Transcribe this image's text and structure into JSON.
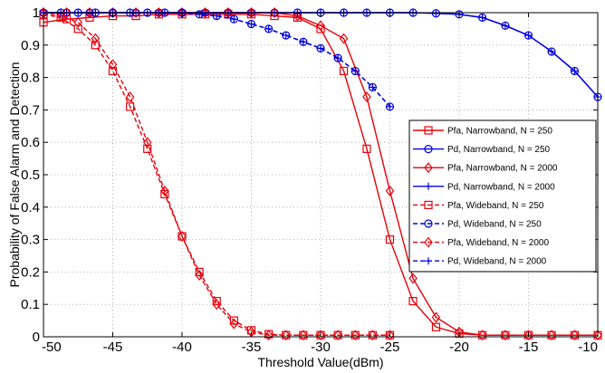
{
  "chart_data": {
    "type": "line",
    "title": "",
    "xlabel": "Threshold Value(dBm)",
    "ylabel": "Probability of False Alarm and Detection",
    "xlim": [
      -50,
      -10
    ],
    "ylim": [
      0,
      1
    ],
    "xticks": [
      -50,
      -45,
      -40,
      -35,
      -30,
      -25,
      -20,
      -15,
      -10
    ],
    "yticks": [
      0,
      0.1,
      0.2,
      0.3,
      0.4,
      0.5,
      0.6,
      0.7,
      0.8,
      0.9,
      1
    ],
    "xtick_labels": [
      "-50",
      "-45",
      "-40",
      "-35",
      "-30",
      "-25",
      "-20",
      "-15",
      "-10"
    ],
    "ytick_labels": [
      "0",
      "0.1",
      "0.2",
      "0.3",
      "0.4",
      "0.5",
      "0.6",
      "0.7",
      "0.8",
      "0.9",
      "1"
    ],
    "grid": true,
    "legend_position": "right",
    "series": [
      {
        "name": "Pfa, Narrowband, N = 250",
        "color": "#e8000b",
        "dash": "solid",
        "marker": "square",
        "x": [
          -50,
          -48.33,
          -46.67,
          -45,
          -43.33,
          -41.67,
          -40,
          -38.33,
          -36.67,
          -35,
          -33.33,
          -31.67,
          -30,
          -28.33,
          -26.67,
          -25,
          -23.33,
          -21.67,
          -20,
          -18.33,
          -16.67,
          -15,
          -13.33,
          -11.67,
          -10
        ],
        "y": [
          0.97,
          0.98,
          0.985,
          0.99,
          0.99,
          0.995,
          0.995,
          0.995,
          0.995,
          0.995,
          0.99,
          0.985,
          0.95,
          0.82,
          0.58,
          0.3,
          0.11,
          0.03,
          0.01,
          0.005,
          0.005,
          0.005,
          0.005,
          0.005,
          0.005
        ]
      },
      {
        "name": "Pd, Narrowband, N = 250",
        "color": "#0000e0",
        "dash": "solid",
        "marker": "circle",
        "x": [
          -50,
          -48.33,
          -46.67,
          -45,
          -43.33,
          -41.67,
          -40,
          -38.33,
          -36.67,
          -35,
          -33.33,
          -31.67,
          -30,
          -28.33,
          -26.67,
          -25,
          -23.33,
          -21.67,
          -20,
          -18.33,
          -16.67,
          -15,
          -13.33,
          -11.67,
          -10
        ],
        "y": [
          1,
          1,
          1,
          1,
          1,
          1,
          1,
          1,
          1,
          1,
          1,
          1,
          1,
          1,
          1,
          1,
          1,
          0.998,
          0.995,
          0.985,
          0.96,
          0.93,
          0.88,
          0.82,
          0.74
        ]
      },
      {
        "name": "Pfa, Narrowband, N = 2000",
        "color": "#e8000b",
        "dash": "solid",
        "marker": "diamond",
        "x": [
          -50,
          -48.33,
          -46.67,
          -45,
          -43.33,
          -41.67,
          -40,
          -38.33,
          -36.67,
          -35,
          -33.33,
          -31.67,
          -30,
          -28.33,
          -26.67,
          -25,
          -23.33,
          -21.67,
          -20,
          -18.33,
          -16.67,
          -15,
          -13.33,
          -11.67,
          -10
        ],
        "y": [
          1,
          1,
          1,
          1,
          1,
          1,
          1,
          1,
          1,
          1,
          1,
          0.99,
          0.96,
          0.92,
          0.74,
          0.45,
          0.18,
          0.06,
          0.015,
          0.005,
          0.005,
          0.005,
          0.005,
          0.005,
          0.005
        ]
      },
      {
        "name": "Pd, Narrowband, N = 2000",
        "color": "#0000e0",
        "dash": "solid",
        "marker": "plus",
        "x": [
          -50,
          -48.33,
          -46.67,
          -45,
          -43.33,
          -41.67,
          -40,
          -38.33,
          -36.67,
          -35,
          -33.33,
          -31.67,
          -30,
          -28.33,
          -26.67,
          -25,
          -23.33,
          -21.67,
          -20,
          -18.33,
          -16.67,
          -15,
          -13.33,
          -11.67,
          -10
        ],
        "y": [
          1,
          1,
          1,
          1,
          1,
          1,
          1,
          1,
          1,
          1,
          1,
          1,
          1,
          1,
          1,
          1,
          1,
          0.998,
          0.995,
          0.985,
          0.96,
          0.93,
          0.88,
          0.82,
          0.74
        ]
      },
      {
        "name": "Pfa, Wideband, N = 250",
        "color": "#e8000b",
        "dash": "dashed",
        "marker": "square",
        "x": [
          -50,
          -48.75,
          -47.5,
          -46.25,
          -45,
          -43.75,
          -42.5,
          -41.25,
          -40,
          -38.75,
          -37.5,
          -36.25,
          -35,
          -33.75,
          -32.5,
          -31.25,
          -30,
          -28.75,
          -27.5,
          -26.25,
          -25
        ],
        "y": [
          0.995,
          0.985,
          0.95,
          0.9,
          0.82,
          0.71,
          0.58,
          0.44,
          0.31,
          0.2,
          0.11,
          0.05,
          0.02,
          0.008,
          0.005,
          0.005,
          0.005,
          0.005,
          0.005,
          0.005,
          0.005
        ]
      },
      {
        "name": "Pd, Wideband, N = 250",
        "color": "#0000e0",
        "dash": "dashed",
        "marker": "circle",
        "x": [
          -50,
          -48.75,
          -47.5,
          -46.25,
          -45,
          -43.75,
          -42.5,
          -41.25,
          -40,
          -38.75,
          -37.5,
          -36.25,
          -35,
          -33.75,
          -32.5,
          -31.25,
          -30,
          -28.75,
          -27.5,
          -26.25,
          -25
        ],
        "y": [
          1,
          1,
          1,
          1,
          1,
          1,
          1,
          1,
          1,
          0.995,
          0.99,
          0.98,
          0.965,
          0.95,
          0.93,
          0.91,
          0.89,
          0.86,
          0.82,
          0.77,
          0.71
        ]
      },
      {
        "name": "Pfa, Wideband, N = 2000",
        "color": "#e8000b",
        "dash": "dashed",
        "marker": "diamond",
        "x": [
          -50,
          -48.75,
          -47.5,
          -46.25,
          -45,
          -43.75,
          -42.5,
          -41.25,
          -40,
          -38.75,
          -37.5,
          -36.25,
          -35,
          -33.75,
          -32.5,
          -31.25,
          -30,
          -28.75,
          -27.5,
          -26.25,
          -25
        ],
        "y": [
          1,
          0.99,
          0.97,
          0.92,
          0.84,
          0.74,
          0.6,
          0.45,
          0.31,
          0.19,
          0.1,
          0.04,
          0.015,
          0.005,
          0.005,
          0.005,
          0.005,
          0.005,
          0.005,
          0.005,
          0.005
        ]
      },
      {
        "name": "Pd, Wideband, N = 2000",
        "color": "#0000e0",
        "dash": "dashed",
        "marker": "plus",
        "x": [
          -50,
          -48.75,
          -47.5,
          -46.25,
          -45,
          -43.75,
          -42.5,
          -41.25,
          -40,
          -38.75,
          -37.5,
          -36.25,
          -35,
          -33.75,
          -32.5,
          -31.25,
          -30,
          -28.75,
          -27.5,
          -26.25,
          -25
        ],
        "y": [
          1,
          1,
          1,
          1,
          1,
          1,
          1,
          1,
          1,
          0.995,
          0.99,
          0.98,
          0.965,
          0.95,
          0.93,
          0.91,
          0.89,
          0.86,
          0.82,
          0.77,
          0.71
        ]
      }
    ]
  }
}
